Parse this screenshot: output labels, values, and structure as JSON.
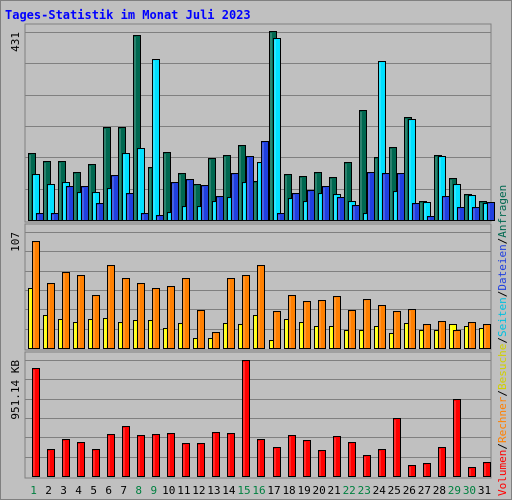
{
  "chart_data": [
    {
      "type": "bar",
      "title": "Tages-Statistik im Monat Juli 2023",
      "ymax_label": "431",
      "categories": [
        "1",
        "2",
        "3",
        "4",
        "5",
        "6",
        "7",
        "8",
        "9",
        "10",
        "11",
        "12",
        "13",
        "14",
        "15",
        "16",
        "17",
        "18",
        "19",
        "20",
        "21",
        "22",
        "23",
        "24",
        "25",
        "26",
        "27",
        "28",
        "29",
        "30",
        "31"
      ],
      "weekend_days": [
        "1",
        "8",
        "9",
        "15",
        "16",
        "22",
        "23",
        "29",
        "30"
      ],
      "series": [
        {
          "name": "Anfragen",
          "color": "#006850",
          "values": [
            154,
            136,
            136,
            109,
            128,
            213,
            213,
            424,
            121,
            155,
            108,
            83,
            141,
            150,
            171,
            90,
            434,
            106,
            102,
            110,
            99,
            132,
            253,
            144,
            167,
            237,
            43,
            149,
            96,
            60,
            43
          ]
        },
        {
          "name": "Seiten",
          "color": "#00e0ff",
          "values": [
            106,
            82,
            86,
            64,
            64,
            74,
            154,
            164,
            369,
            19,
            32,
            33,
            43,
            53,
            88,
            133,
            418,
            50,
            44,
            63,
            60,
            44,
            16,
            364,
            67,
            231,
            41,
            147,
            83,
            57,
            38
          ]
        },
        {
          "name": "Dateien",
          "color": "#2040e0",
          "values": [
            17,
            16,
            79,
            77,
            39,
            104,
            62,
            17,
            12,
            86,
            94,
            80,
            56,
            108,
            146,
            180,
            17,
            62,
            68,
            77,
            52,
            34,
            109,
            108,
            108,
            39,
            10,
            56,
            30,
            30,
            41
          ]
        }
      ],
      "ylim": [
        0,
        431
      ]
    },
    {
      "type": "bar",
      "ymax_label": "107",
      "categories": [
        "1",
        "2",
        "3",
        "4",
        "5",
        "6",
        "7",
        "8",
        "9",
        "10",
        "11",
        "12",
        "13",
        "14",
        "15",
        "16",
        "17",
        "18",
        "19",
        "20",
        "21",
        "22",
        "23",
        "24",
        "25",
        "26",
        "27",
        "28",
        "29",
        "30",
        "31"
      ],
      "series": [
        {
          "name": "Besuche",
          "color": "#ffff00",
          "values": [
            55,
            30,
            27,
            24,
            27,
            28,
            24,
            26,
            26,
            18,
            23,
            9,
            9,
            23,
            22,
            30,
            7,
            27,
            24,
            20,
            20,
            17,
            17,
            20,
            14,
            23,
            17,
            17,
            22,
            20,
            18
          ]
        },
        {
          "name": "Rechner",
          "color": "#ff8000",
          "values": [
            99,
            60,
            70,
            67,
            49,
            77,
            65,
            60,
            55,
            57,
            65,
            35,
            15,
            65,
            67,
            77,
            34,
            49,
            43,
            44,
            48,
            35,
            45,
            40,
            34,
            36,
            22,
            25,
            17,
            24,
            22
          ]
        }
      ],
      "ylim": [
        0,
        107
      ]
    },
    {
      "type": "bar",
      "ymax_label": "951.14 KB",
      "categories": [
        "1",
        "2",
        "3",
        "4",
        "5",
        "6",
        "7",
        "8",
        "9",
        "10",
        "11",
        "12",
        "13",
        "14",
        "15",
        "16",
        "17",
        "18",
        "19",
        "20",
        "21",
        "22",
        "23",
        "24",
        "25",
        "26",
        "27",
        "28",
        "29",
        "30",
        "31"
      ],
      "series": [
        {
          "name": "Volumen",
          "color": "#ff0000",
          "values": [
            886,
            221,
            307,
            282,
            221,
            346,
            411,
            339,
            346,
            350,
            268,
            268,
            360,
            353,
            951,
            307,
            239,
            339,
            297,
            213,
            325,
            275,
            170,
            224,
            473,
            94,
            109,
            239,
            628,
            71,
            117
          ]
        }
      ],
      "ylim": [
        0,
        951.14
      ]
    }
  ],
  "legend": {
    "items": [
      {
        "label": "Volumen",
        "color": "#ff0000"
      },
      {
        "label": "Rechner",
        "color": "#ff8000"
      },
      {
        "label": "Besuche",
        "color": "#d0d000"
      },
      {
        "label": "Seiten",
        "color": "#00c0e0"
      },
      {
        "label": "Dateien",
        "color": "#2040e0"
      },
      {
        "label": "Anfragen",
        "color": "#006850"
      }
    ],
    "separator": "/"
  },
  "colors": {
    "background": "#c0c0c0",
    "grid": "#808080",
    "title": "#0000ff",
    "weekday": "#000000",
    "weekend": "#008040"
  }
}
